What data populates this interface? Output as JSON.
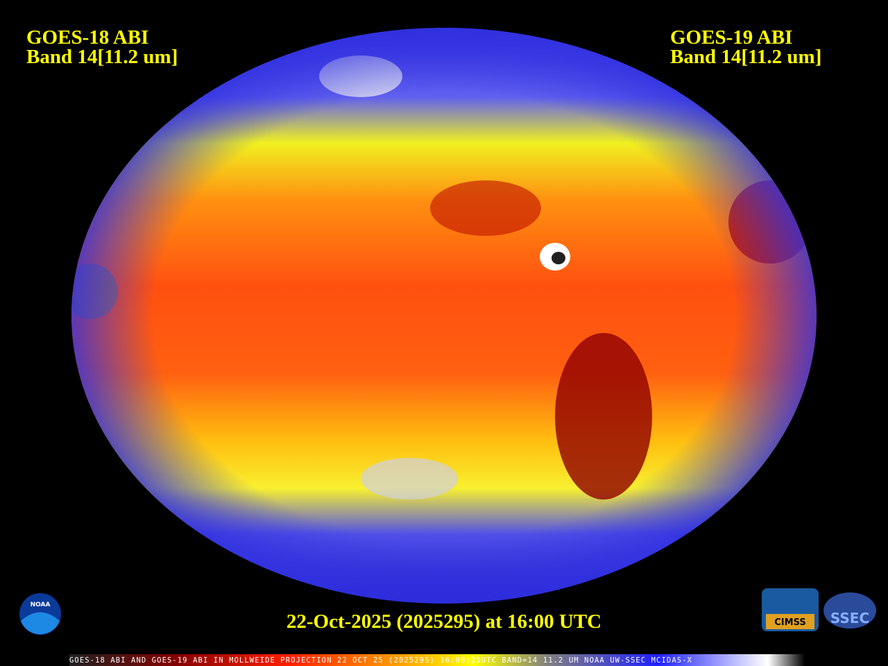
{
  "header": {
    "left": {
      "line1": "GOES-18 ABI",
      "line2": "Band 14[11.2 um]"
    },
    "right": {
      "line1": "GOES-19 ABI",
      "line2": "Band 14[11.2 um]"
    }
  },
  "timestamp": "22-Oct-2025 (2025295) at 16:00 UTC",
  "logos": {
    "noaa": "NOAA",
    "cimss": "CIMSS",
    "ssec": "SSEC"
  },
  "colorbar_caption": "GOES-18 ABI AND GOES-19 ABI IN MOLLWEIDE PROJECTION 22 OCT 25 (2025295) 16:00:21UTC BAND=14 11.2 UM NOAA UW-SSEC MCIDAS-X"
}
